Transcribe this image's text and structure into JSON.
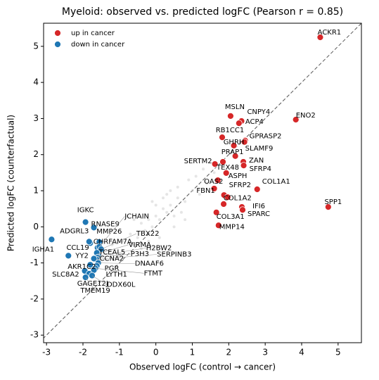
{
  "chart_data": {
    "type": "scatter",
    "title": "Myeloid: observed vs. predicted logFC   (Pearson r = 0.85)",
    "x_label": "Observed logFC  (control → cancer)",
    "y_label": "Predicted logFC  (counterfactual)",
    "xlim": [
      -3.08,
      5.64
    ],
    "ylim": [
      -3.21,
      5.64
    ],
    "xticks": [
      -3,
      -2,
      -1,
      0,
      1,
      2,
      3,
      4,
      5
    ],
    "yticks": [
      -3,
      -2,
      -1,
      0,
      1,
      2,
      3,
      4,
      5
    ],
    "diagonal": true,
    "legend": "upper left",
    "series": [
      {
        "color": "#cccccc",
        "x": [
          -1.2,
          -0.9,
          -0.7,
          -0.5,
          -0.4,
          -0.3,
          -0.2,
          -0.1,
          0,
          0.1,
          0.2,
          0.3,
          0.4,
          0.5,
          0.6,
          0.8,
          1.0,
          1.2,
          1.4,
          -0.6,
          -0.2,
          0.1,
          0.3,
          0.7,
          0.9,
          -1.0,
          -0.8,
          0.0,
          0.5,
          1.1,
          -0.4,
          0.2,
          0.6,
          1.3,
          -1.4,
          1.6,
          0.8,
          -0.1,
          0.4,
          -0.6
        ],
        "values": [
          -0.5,
          -0.4,
          -0.2,
          -0.3,
          0.1,
          -0.1,
          0.2,
          0.0,
          0.3,
          0.2,
          0.5,
          0.4,
          0.6,
          0.3,
          0.8,
          0.7,
          1.0,
          0.9,
          1.2,
          0.2,
          -0.4,
          -0.3,
          0.9,
          0.4,
          1.3,
          -0.8,
          0.3,
          0.6,
          0.0,
          1.4,
          -0.6,
          0.8,
          1.1,
          1.6,
          -0.9,
          1.5,
          0.2,
          0.7,
          1.0,
          -0.5
        ]
      },
      {
        "name": "up in cancer",
        "color": "#d62728",
        "x": [
          4.51,
          3.84,
          4.73,
          2.05,
          2.35,
          2.28,
          1.82,
          2.45,
          2.14,
          2.43,
          2.18,
          1.62,
          1.84,
          2.4,
          2.41,
          1.93,
          1.7,
          1.87,
          1.6,
          1.97,
          2.78,
          1.86,
          2.36,
          1.66,
          2.38,
          1.72
        ],
        "values": [
          5.25,
          2.97,
          0.55,
          3.07,
          2.93,
          2.87,
          2.48,
          2.39,
          2.25,
          2.35,
          1.96,
          1.74,
          1.8,
          1.8,
          1.7,
          1.49,
          1.29,
          0.88,
          1.06,
          0.82,
          1.04,
          0.63,
          0.55,
          0.4,
          0.47,
          0.04
        ],
        "labels": [
          "ACKR1",
          "ENO2",
          "SPP1",
          "MSLN",
          "CNPY4",
          "ACP4",
          "RB1CC1",
          "GPRASP2",
          "GHRH",
          "SLAMF9",
          "PRAP1",
          "SERTM2",
          "TEX48",
          "ZAN",
          "SFRP4",
          "ASPH",
          "OAS2",
          "SFRP2",
          "FBN1",
          "COL1A2",
          "COL1A1",
          null,
          "IFI6",
          "COL3A1",
          "SPARC",
          "MMP14"
        ]
      },
      {
        "name": "down in cancer",
        "color": "#1f77b4",
        "x": [
          -1.93,
          -1.7,
          -2.86,
          -1.55,
          -1.8,
          -1.83,
          -1.6,
          -2.4,
          -1.55,
          -1.5,
          -1.6,
          -1.58,
          -1.62,
          -1.6,
          -1.63,
          -1.7,
          -1.58,
          -1.8,
          -1.62,
          -1.66,
          -1.95,
          -1.7,
          -1.83,
          -1.75,
          -1.93
        ],
        "values": [
          0.13,
          -0.02,
          -0.35,
          -0.42,
          -0.45,
          -0.41,
          -0.58,
          -0.8,
          -0.55,
          -0.62,
          -0.75,
          -0.8,
          -0.72,
          -0.85,
          -0.9,
          -0.88,
          -1.0,
          -1.05,
          -1.08,
          -1.15,
          -1.22,
          -1.2,
          -1.3,
          -1.35,
          -1.4
        ],
        "labels": [
          "IGKC",
          "RNASE9",
          "IGHA1",
          "MMP26",
          "ADGRL3",
          "CHRFAM7A",
          "CCL19",
          "YY2",
          "JCHAIN",
          "TBX22",
          "VIRMA",
          "H2BW2",
          "TCEAL5",
          "P3H3",
          "SERPINB3",
          "CCNA2",
          "DNAAF6",
          "AKR1C2",
          "PGR",
          "FTMT",
          "SLC8A2",
          "LYTH1",
          "GAGE12J",
          "DDX60L",
          "TMEM19"
        ]
      }
    ]
  }
}
